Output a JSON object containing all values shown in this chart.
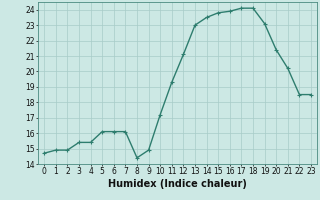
{
  "x": [
    0,
    1,
    2,
    3,
    4,
    5,
    6,
    7,
    8,
    9,
    10,
    11,
    12,
    13,
    14,
    15,
    16,
    17,
    18,
    19,
    20,
    21,
    22,
    23
  ],
  "y": [
    14.7,
    14.9,
    14.9,
    15.4,
    15.4,
    16.1,
    16.1,
    16.1,
    14.4,
    14.9,
    17.2,
    19.3,
    21.1,
    23.0,
    23.5,
    23.8,
    23.9,
    24.1,
    24.1,
    23.1,
    21.4,
    20.2,
    18.5,
    18.5
  ],
  "line_color": "#2e7d6e",
  "marker": "+",
  "marker_size": 3,
  "bg_color": "#cce8e4",
  "grid_color": "#a8ccc8",
  "xlabel": "Humidex (Indice chaleur)",
  "ylim": [
    14,
    24.5
  ],
  "xlim": [
    -0.5,
    23.5
  ],
  "yticks": [
    14,
    15,
    16,
    17,
    18,
    19,
    20,
    21,
    22,
    23,
    24
  ],
  "xticks": [
    0,
    1,
    2,
    3,
    4,
    5,
    6,
    7,
    8,
    9,
    10,
    11,
    12,
    13,
    14,
    15,
    16,
    17,
    18,
    19,
    20,
    21,
    22,
    23
  ],
  "tick_fontsize": 5.5,
  "xlabel_fontsize": 7.0,
  "line_width": 1.0
}
